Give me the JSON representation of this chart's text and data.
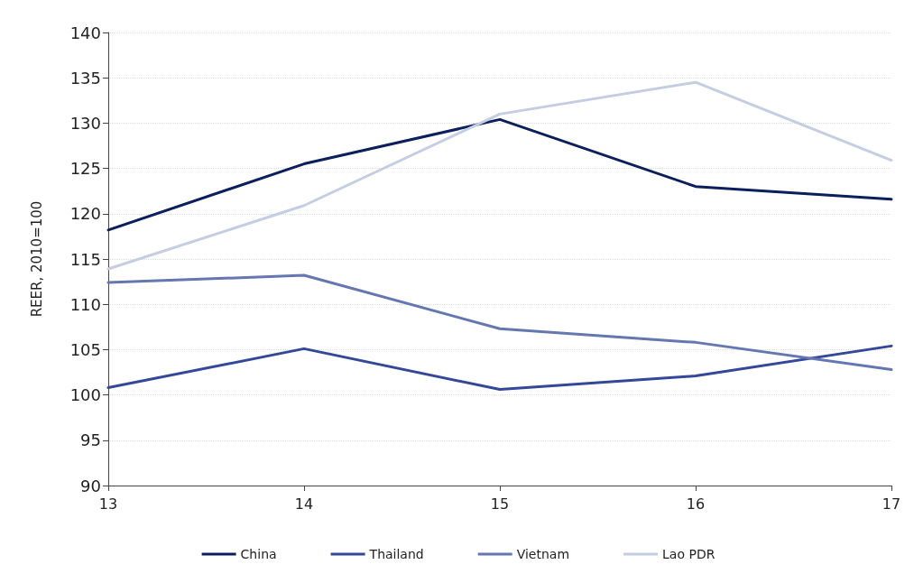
{
  "chart_data": {
    "type": "line",
    "ylabel": "REER, 2010=100",
    "x": [
      13,
      14,
      15,
      16,
      17
    ],
    "xlim": [
      13,
      17
    ],
    "xticks": [
      13,
      14,
      15,
      16,
      17
    ],
    "ylim": [
      90,
      140
    ],
    "yticks": [
      90,
      95,
      100,
      105,
      110,
      115,
      120,
      125,
      130,
      135,
      140
    ],
    "grid": "y",
    "legend": "bottom",
    "marker": "none",
    "line_style": "solid",
    "series": [
      {
        "name": "China",
        "color": "#0a1f5c",
        "values": [
          118.2,
          125.5,
          130.4,
          123,
          121.6
        ]
      },
      {
        "name": "Thailand",
        "color": "#34489a",
        "values": [
          100.8,
          105.1,
          100.6,
          102.1,
          105.4
        ]
      },
      {
        "name": "Vietnam",
        "color": "#6477b0",
        "values": [
          112.4,
          113.2,
          107.3,
          105.8,
          102.8
        ]
      },
      {
        "name": "Lao PDR",
        "color": "#c5cde3",
        "values": [
          113.9,
          120.9,
          131,
          134.5,
          125.9
        ]
      }
    ]
  }
}
